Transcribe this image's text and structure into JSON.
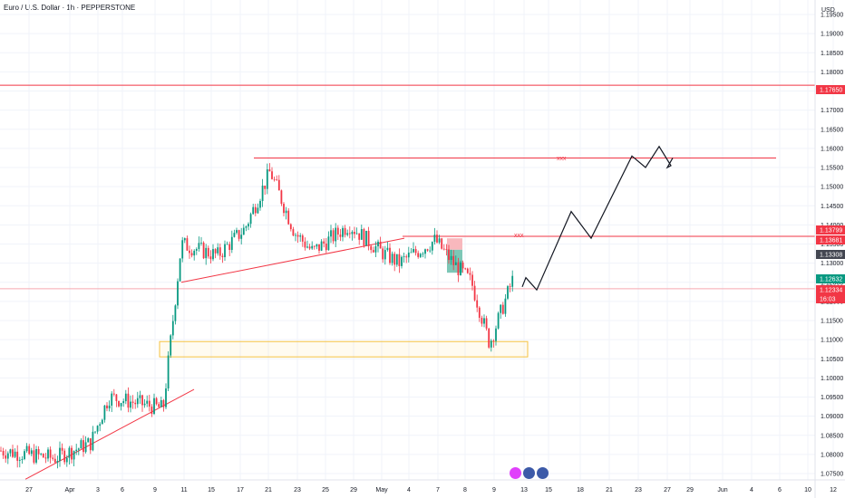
{
  "header": {
    "title": "Euro / U.S. Dollar · 1h · PEPPERSTONE"
  },
  "axis": {
    "currency": "USD",
    "y_ticks": [
      "1.19500",
      "1.19000",
      "1.18500",
      "1.18000",
      "1.17500",
      "1.17000",
      "1.16500",
      "1.16000",
      "1.15500",
      "1.15000",
      "1.14500",
      "1.14000",
      "1.13500",
      "1.13000",
      "1.12500",
      "1.12000",
      "1.11500",
      "1.11000",
      "1.10500",
      "1.10000",
      "1.09500",
      "1.09000",
      "1.08500",
      "1.08000",
      "1.07500"
    ],
    "x_ticks": [
      "27",
      "Apr",
      "3",
      "6",
      "9",
      "11",
      "15",
      "17",
      "21",
      "23",
      "25",
      "29",
      "May",
      "4",
      "7",
      "8",
      "9",
      "13",
      "15",
      "18",
      "21",
      "23",
      "27",
      "29",
      "Jun",
      "4",
      "6",
      "10",
      "12"
    ]
  },
  "price_tags": [
    {
      "label": "1.17650",
      "value": 1.1765,
      "color": "#f23645"
    },
    {
      "label": "1.13799",
      "value": 1.13799,
      "color": "#f23645"
    },
    {
      "label": "1.13681",
      "value": 1.13681,
      "color": "#f23645"
    },
    {
      "label": "1.13308",
      "value": 1.13308,
      "color": "#434651"
    },
    {
      "label": "1.12632",
      "value": 1.12632,
      "color": "#089981"
    },
    {
      "label": "1.12334",
      "value": 1.12334,
      "color": "#f23645"
    },
    {
      "label": "16:03",
      "value": 1.1217,
      "color": "#f23645"
    }
  ],
  "annotations": {
    "xxx_upper": "xxx",
    "xxx_lower": "xxx"
  },
  "chart_data": {
    "type": "line",
    "title": "Euro / U.S. Dollar · 1h · PEPPERSTONE",
    "x": [
      "27",
      "Apr",
      "3",
      "6",
      "9",
      "11",
      "15",
      "17",
      "21",
      "23",
      "25",
      "29",
      "May",
      "4",
      "7",
      "8",
      "9",
      "13",
      "15"
    ],
    "series": [
      {
        "values": [
          1.081,
          1.079,
          1.083,
          1.095,
          1.092,
          1.135,
          1.132,
          1.139,
          1.154,
          1.138,
          1.133,
          1.14,
          1.133,
          1.13,
          1.136,
          1.13,
          1.125,
          1.109,
          1.126
        ]
      }
    ],
    "projection": {
      "x": [
        "15",
        "18",
        "21",
        "23",
        "27",
        "29"
      ],
      "values": [
        1.125,
        1.13,
        1.143,
        1.136,
        1.158,
        1.157
      ]
    },
    "levels": [
      1.1765,
      1.1575,
      1.137,
      1.1233
    ],
    "zone": {
      "from": "11",
      "to": "15",
      "low": 1.1055,
      "high": 1.1095
    },
    "ylim": [
      1.074,
      1.196
    ],
    "grid": true
  },
  "events": [
    {
      "icon": "lightning-icon",
      "color": "#e040fb"
    },
    {
      "icon": "us-flag-icon",
      "color": "#3c5aa8"
    },
    {
      "icon": "us-flag-icon",
      "color": "#3c5aa8"
    }
  ]
}
